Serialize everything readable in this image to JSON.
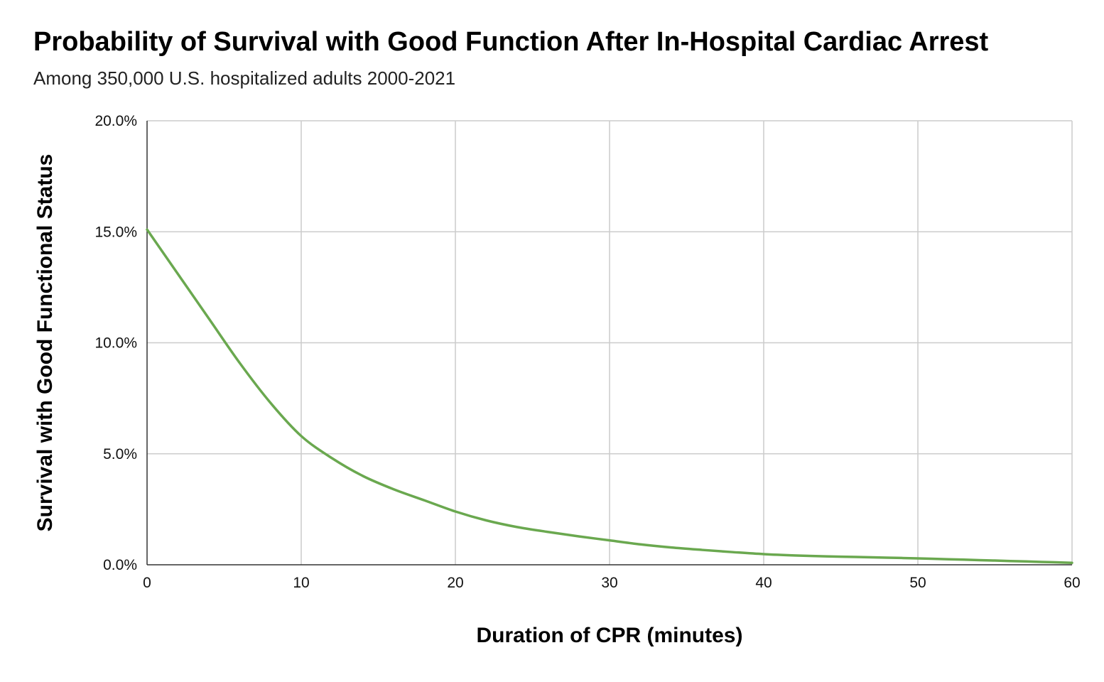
{
  "chart_data": {
    "type": "line",
    "title": "Probability of Survival with Good Function After In-Hospital Cardiac Arrest",
    "subtitle": "Among 350,000 U.S. hospitalized adults 2000-2021",
    "xlabel": "Duration of CPR (minutes)",
    "ylabel": "Survival with Good Functional Status",
    "xlim": [
      0,
      60
    ],
    "ylim": [
      0,
      0.2
    ],
    "x_ticks": [
      0,
      10,
      20,
      30,
      40,
      50,
      60
    ],
    "x_tick_labels": [
      "0",
      "10",
      "20",
      "30",
      "40",
      "50",
      "60"
    ],
    "y_ticks": [
      0,
      0.05,
      0.1,
      0.15,
      0.2
    ],
    "y_tick_labels": [
      "0.0%",
      "5.0%",
      "10.0%",
      "15.0%",
      "20.0%"
    ],
    "grid": true,
    "legend": "none",
    "series": [
      {
        "color": "#6aa84f",
        "x": [
          0,
          2,
          4,
          6,
          8,
          10,
          12,
          14,
          16,
          18,
          20,
          22,
          24,
          26,
          28,
          30,
          32,
          34,
          36,
          38,
          40,
          42,
          44,
          46,
          48,
          50,
          52,
          54,
          56,
          58,
          60
        ],
        "values": [
          0.151,
          0.131,
          0.111,
          0.091,
          0.073,
          0.058,
          0.048,
          0.04,
          0.034,
          0.029,
          0.024,
          0.02,
          0.017,
          0.0148,
          0.0128,
          0.011,
          0.0092,
          0.0078,
          0.0067,
          0.0057,
          0.0048,
          0.0042,
          0.0038,
          0.0035,
          0.0032,
          0.0029,
          0.0025,
          0.0021,
          0.0017,
          0.0013,
          0.0009
        ]
      }
    ]
  }
}
